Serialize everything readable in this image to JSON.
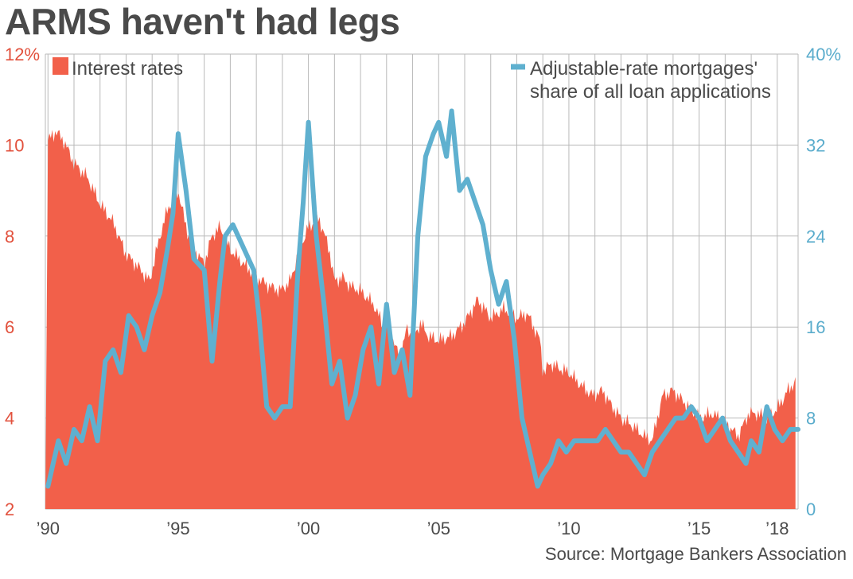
{
  "title": "ARMS haven't had legs",
  "source": "Source: Mortgage Bankers Association",
  "colors": {
    "rates": "#f2604a",
    "rates_axis": "#e2513d",
    "arm": "#5fb0cf",
    "arm_axis": "#5aaccc",
    "grid": "#b9b9b9",
    "text": "#4a4a4a"
  },
  "chart_data": {
    "type": "area",
    "x_tick_labels": [
      "’90",
      "’95",
      "’00",
      "’05",
      "’10",
      "’15",
      "’18"
    ],
    "x_tick_values": [
      1990,
      1995,
      2000,
      2005,
      2010,
      2015,
      2018
    ],
    "x_range": [
      1989.9,
      2018.8
    ],
    "y_left": {
      "ticks": [
        "2",
        "4",
        "6",
        "8",
        "10",
        "12%"
      ],
      "range": [
        2,
        12
      ]
    },
    "y_right": {
      "ticks": [
        "0",
        "8",
        "16",
        "24",
        "32",
        "40%"
      ],
      "range": [
        0,
        40
      ]
    },
    "grid": true,
    "legend_placement": "top",
    "series": [
      {
        "name": "Interest rates",
        "kind": "area",
        "axis": "left",
        "x": [
          1990.0,
          1990.3,
          1990.6,
          1991.0,
          1991.5,
          1992.0,
          1992.5,
          1993.0,
          1993.5,
          1993.9,
          1994.3,
          1994.6,
          1995.0,
          1995.3,
          1995.6,
          1996.0,
          1996.3,
          1996.6,
          1997.0,
          1997.5,
          1998.0,
          1998.5,
          1998.9,
          1999.3,
          1999.6,
          2000.0,
          2000.4,
          2000.8,
          2001.0,
          2001.3,
          2001.6,
          2002.0,
          2002.5,
          2002.9,
          2003.2,
          2003.5,
          2003.8,
          2004.0,
          2004.3,
          2004.6,
          2005.0,
          2005.5,
          2006.0,
          2006.5,
          2007.0,
          2007.5,
          2008.0,
          2008.4,
          2008.9,
          2009.0,
          2009.3,
          2009.6,
          2010.0,
          2010.5,
          2010.9,
          2011.3,
          2011.6,
          2012.0,
          2012.5,
          2012.9,
          2013.2,
          2013.6,
          2014.0,
          2014.5,
          2015.0,
          2015.5,
          2016.0,
          2016.5,
          2016.9,
          2017.2,
          2017.6,
          2018.0,
          2018.4,
          2018.7
        ],
        "values": [
          10.1,
          10.3,
          10.1,
          9.6,
          9.3,
          8.7,
          8.3,
          7.6,
          7.3,
          7.0,
          8.0,
          8.6,
          9.0,
          8.2,
          7.7,
          7.4,
          8.0,
          8.2,
          7.7,
          7.4,
          7.1,
          6.9,
          6.8,
          7.0,
          7.6,
          8.2,
          8.4,
          7.7,
          7.0,
          7.1,
          6.9,
          6.8,
          6.5,
          6.0,
          5.8,
          5.3,
          6.0,
          5.7,
          6.1,
          5.8,
          5.7,
          5.8,
          6.1,
          6.6,
          6.2,
          6.4,
          6.2,
          6.3,
          5.7,
          5.0,
          5.2,
          5.1,
          5.0,
          4.7,
          4.5,
          4.6,
          4.3,
          4.0,
          3.8,
          3.6,
          3.5,
          4.5,
          4.6,
          4.3,
          4.0,
          4.1,
          3.9,
          3.6,
          4.1,
          4.1,
          4.0,
          4.2,
          4.6,
          4.8
        ]
      },
      {
        "name": "Adjustable-rate mortgages' share of all loan applications",
        "kind": "line",
        "axis": "right",
        "x": [
          1990.0,
          1990.2,
          1990.4,
          1990.7,
          1991.0,
          1991.3,
          1991.6,
          1991.9,
          1992.2,
          1992.5,
          1992.8,
          1993.1,
          1993.4,
          1993.7,
          1994.0,
          1994.3,
          1994.6,
          1994.8,
          1995.0,
          1995.3,
          1995.6,
          1996.0,
          1996.3,
          1996.6,
          1996.8,
          1997.1,
          1997.5,
          1997.9,
          1998.1,
          1998.4,
          1998.7,
          1999.0,
          1999.3,
          1999.6,
          1999.8,
          2000.0,
          2000.3,
          2000.6,
          2000.9,
          2001.2,
          2001.5,
          2001.8,
          2002.1,
          2002.4,
          2002.7,
          2003.0,
          2003.3,
          2003.6,
          2003.9,
          2004.2,
          2004.5,
          2004.8,
          2005.0,
          2005.3,
          2005.5,
          2005.8,
          2006.1,
          2006.4,
          2006.7,
          2007.0,
          2007.3,
          2007.6,
          2007.9,
          2008.2,
          2008.5,
          2008.8,
          2009.0,
          2009.3,
          2009.6,
          2009.9,
          2010.2,
          2010.5,
          2010.8,
          2011.1,
          2011.4,
          2011.7,
          2012.0,
          2012.3,
          2012.6,
          2012.9,
          2013.2,
          2013.5,
          2013.8,
          2014.1,
          2014.4,
          2014.7,
          2015.0,
          2015.3,
          2015.6,
          2015.9,
          2016.2,
          2016.5,
          2016.8,
          2017.0,
          2017.3,
          2017.6,
          2017.9,
          2018.2,
          2018.5,
          2018.8
        ],
        "values": [
          2,
          4,
          6,
          4,
          7,
          6,
          9,
          6,
          13,
          14,
          12,
          17,
          16,
          14,
          17,
          19,
          23,
          26,
          33,
          28,
          22,
          21,
          13,
          20,
          24,
          25,
          23,
          21,
          17,
          9,
          8,
          9,
          9,
          21,
          27,
          34,
          24,
          18,
          11,
          13,
          8,
          10,
          14,
          16,
          11,
          18,
          12,
          14,
          10,
          24,
          31,
          33,
          34,
          31,
          35,
          28,
          29,
          27,
          25,
          21,
          18,
          20,
          15,
          8,
          5,
          2,
          3,
          4,
          6,
          5,
          6,
          6,
          6,
          6,
          7,
          6,
          5,
          5,
          4,
          3,
          5,
          6,
          7,
          8,
          8,
          9,
          8,
          6,
          7,
          8,
          6,
          5,
          4,
          6,
          5,
          9,
          7,
          6,
          7,
          7
        ]
      }
    ]
  }
}
